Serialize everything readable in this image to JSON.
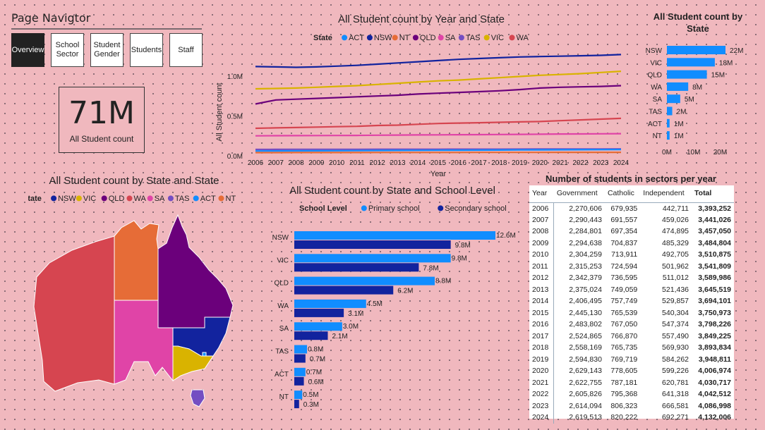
{
  "nav": {
    "title": "Page Navigtor",
    "buttons": [
      {
        "label": "Overview",
        "active": true
      },
      {
        "label": "School Sector",
        "active": false
      },
      {
        "label": "Student Gender",
        "active": false
      },
      {
        "label": "Students",
        "active": false
      },
      {
        "label": "Staff",
        "active": false
      }
    ]
  },
  "kpi": {
    "value": "71M",
    "label": "All Student count"
  },
  "colors": {
    "ACT": "#118DFF",
    "NSW": "#12239E",
    "NT": "#E66C37",
    "QLD": "#6B007B",
    "SA": "#E044A7",
    "TAS": "#744EC2",
    "VIC": "#D9B300",
    "WA": "#D64550",
    "primary": "#118DFF",
    "secondary": "#12239E"
  },
  "line_chart": {
    "title": "All Student count by Year and State",
    "legend_title": "State",
    "legend": [
      "ACT",
      "NSW",
      "NT",
      "QLD",
      "SA",
      "TAS",
      "VIC",
      "WA"
    ],
    "xlabel": "Year",
    "ylabel": "All Student count",
    "yticks": [
      "0.0M",
      "0.5M",
      "1.0M"
    ],
    "xticks": [
      "2006",
      "2007",
      "2008",
      "2009",
      "2010",
      "2011",
      "2012",
      "2013",
      "2014",
      "2015",
      "2016",
      "2017",
      "2018",
      "2019",
      "2020",
      "2021",
      "2022",
      "2023",
      "2024"
    ]
  },
  "state_bar": {
    "title": "All Student count by State",
    "states": [
      "NSW",
      "VIC",
      "QLD",
      "WA",
      "SA",
      "TAS",
      "ACT",
      "NT"
    ],
    "labels": [
      "22M",
      "18M",
      "15M",
      "8M",
      "5M",
      "2M",
      "1M",
      "1M"
    ],
    "xticks": [
      "0M",
      "10M",
      "20M"
    ]
  },
  "map": {
    "title": "All Student count by State and State",
    "legend_title": "State",
    "legend": [
      "NSW",
      "VIC",
      "QLD",
      "WA",
      "SA",
      "TAS",
      "ACT",
      "NT"
    ]
  },
  "level_bar": {
    "title": "All Student count by State and School Level",
    "legend_title": "School Level",
    "legend": [
      "Primary school",
      "Secondary school"
    ],
    "states": [
      "NSW",
      "VIC",
      "QLD",
      "WA",
      "SA",
      "TAS",
      "ACT",
      "NT"
    ],
    "primary_labels": [
      "12.6M",
      "9.8M",
      "8.8M",
      "4.5M",
      "3.0M",
      "0.8M",
      "0.7M",
      "0.5M"
    ],
    "secondary_labels": [
      "9.8M",
      "7.8M",
      "6.2M",
      "3.1M",
      "2.1M",
      "0.7M",
      "0.6M",
      "0.3M"
    ]
  },
  "table": {
    "title": "Number of students in sectors per year",
    "headers": [
      "Year",
      "Government",
      "Catholic",
      "Independent",
      "Total"
    ],
    "rows": [
      [
        "2006",
        "2,270,606",
        "679,935",
        "442,711",
        "3,393,252"
      ],
      [
        "2007",
        "2,290,443",
        "691,557",
        "459,026",
        "3,441,026"
      ],
      [
        "2008",
        "2,284,801",
        "697,354",
        "474,895",
        "3,457,050"
      ],
      [
        "2009",
        "2,294,638",
        "704,837",
        "485,329",
        "3,484,804"
      ],
      [
        "2010",
        "2,304,259",
        "713,911",
        "492,705",
        "3,510,875"
      ],
      [
        "2011",
        "2,315,253",
        "724,594",
        "501,962",
        "3,541,809"
      ],
      [
        "2012",
        "2,342,379",
        "736,595",
        "511,012",
        "3,589,986"
      ],
      [
        "2013",
        "2,375,024",
        "749,059",
        "521,436",
        "3,645,519"
      ],
      [
        "2014",
        "2,406,495",
        "757,749",
        "529,857",
        "3,694,101"
      ],
      [
        "2015",
        "2,445,130",
        "765,539",
        "540,304",
        "3,750,973"
      ],
      [
        "2016",
        "2,483,802",
        "767,050",
        "547,374",
        "3,798,226"
      ],
      [
        "2017",
        "2,524,865",
        "766,870",
        "557,490",
        "3,849,225"
      ],
      [
        "2018",
        "2,558,169",
        "765,735",
        "569,930",
        "3,893,834"
      ],
      [
        "2019",
        "2,594,830",
        "769,719",
        "584,262",
        "3,948,811"
      ],
      [
        "2020",
        "2,629,143",
        "778,605",
        "599,226",
        "4,006,974"
      ],
      [
        "2021",
        "2,622,755",
        "787,181",
        "620,781",
        "4,030,717"
      ],
      [
        "2022",
        "2,605,826",
        "795,368",
        "641,318",
        "4,042,512"
      ],
      [
        "2023",
        "2,614,094",
        "806,323",
        "666,581",
        "4,086,998"
      ],
      [
        "2024",
        "2,619,513",
        "820,222",
        "692,271",
        "4,132,006"
      ]
    ]
  },
  "chart_data": [
    {
      "type": "line",
      "title": "All Student count by Year and State",
      "xlabel": "Year",
      "ylabel": "All Student count",
      "ylim": [
        0,
        1300000
      ],
      "legend_placement": "top",
      "x": [
        2006,
        2007,
        2008,
        2009,
        2010,
        2011,
        2012,
        2013,
        2014,
        2015,
        2016,
        2017,
        2018,
        2019,
        2020,
        2021,
        2022,
        2023,
        2024
      ],
      "series": [
        {
          "name": "NSW",
          "values": [
            1120000,
            1115000,
            1110000,
            1115000,
            1125000,
            1135000,
            1150000,
            1165000,
            1180000,
            1195000,
            1210000,
            1220000,
            1230000,
            1240000,
            1245000,
            1250000,
            1255000,
            1260000,
            1270000
          ]
        },
        {
          "name": "VIC",
          "values": [
            840000,
            845000,
            850000,
            860000,
            870000,
            880000,
            895000,
            910000,
            925000,
            940000,
            950000,
            965000,
            980000,
            995000,
            1010000,
            1020000,
            1030000,
            1045000,
            1060000
          ]
        },
        {
          "name": "QLD",
          "values": [
            650000,
            700000,
            710000,
            720000,
            730000,
            740000,
            750000,
            760000,
            775000,
            785000,
            795000,
            805000,
            815000,
            830000,
            850000,
            860000,
            865000,
            870000,
            880000
          ]
        },
        {
          "name": "WA",
          "values": [
            345000,
            350000,
            355000,
            360000,
            365000,
            370000,
            380000,
            385000,
            395000,
            405000,
            410000,
            415000,
            420000,
            425000,
            430000,
            440000,
            450000,
            460000,
            470000
          ]
        },
        {
          "name": "SA",
          "values": [
            250000,
            252000,
            253000,
            254000,
            255000,
            256000,
            258000,
            260000,
            262000,
            263000,
            264000,
            265000,
            267000,
            269000,
            271000,
            273000,
            274000,
            276000,
            278000
          ]
        },
        {
          "name": "TAS",
          "values": [
            80000,
            80500,
            81000,
            81000,
            81500,
            81500,
            82000,
            82000,
            82500,
            82500,
            83000,
            83000,
            83500,
            84000,
            84500,
            85000,
            85500,
            86000,
            86500
          ]
        },
        {
          "name": "ACT",
          "values": [
            60000,
            61000,
            62000,
            63000,
            64000,
            65000,
            66000,
            67000,
            68000,
            69000,
            70000,
            71000,
            72000,
            73000,
            74000,
            75000,
            76000,
            77000,
            78000
          ]
        },
        {
          "name": "NT",
          "values": [
            40000,
            40200,
            40400,
            40600,
            40800,
            41000,
            41200,
            41400,
            41600,
            41800,
            42000,
            42200,
            42400,
            42600,
            42800,
            43000,
            43200,
            43400,
            43600
          ]
        }
      ]
    },
    {
      "type": "bar",
      "title": "All Student count by State",
      "categories": [
        "NSW",
        "VIC",
        "QLD",
        "WA",
        "SA",
        "TAS",
        "ACT",
        "NT"
      ],
      "values": [
        22000000,
        18000000,
        15000000,
        8000000,
        5000000,
        2000000,
        1000000,
        1000000
      ],
      "xlim": [
        0,
        22000000
      ],
      "orientation": "horizontal"
    },
    {
      "type": "bar",
      "title": "All Student count by State and School Level",
      "categories": [
        "NSW",
        "VIC",
        "QLD",
        "WA",
        "SA",
        "TAS",
        "ACT",
        "NT"
      ],
      "orientation": "horizontal",
      "legend_placement": "top",
      "series": [
        {
          "name": "Primary school",
          "values": [
            12.6,
            9.8,
            8.8,
            4.5,
            3.0,
            0.8,
            0.7,
            0.5
          ]
        },
        {
          "name": "Secondary school",
          "values": [
            9.8,
            7.8,
            6.2,
            3.1,
            2.1,
            0.7,
            0.6,
            0.3
          ]
        }
      ],
      "units": "M"
    },
    {
      "type": "table",
      "title": "Number of students in sectors per year",
      "columns": [
        "Year",
        "Government",
        "Catholic",
        "Independent",
        "Total"
      ]
    }
  ]
}
